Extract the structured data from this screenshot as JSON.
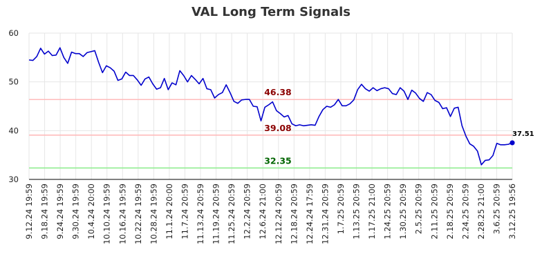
{
  "chart_data": {
    "type": "line",
    "title": "VAL Long Term Signals",
    "xlabel": "",
    "ylabel": "",
    "ylim": [
      30,
      60
    ],
    "yticks": [
      30,
      40,
      50,
      60
    ],
    "grid": true,
    "x_tick_labels": [
      "9.12.24 19:59",
      "9.18.24 19:59",
      "9.24.24 19:59",
      "9.30.24 19:59",
      "10.4.24 20:00",
      "10.10.24 19:59",
      "10.16.24 19:59",
      "10.22.24 19:59",
      "10.28.24 19:59",
      "11.1.24 20:00",
      "11.7.24 20:59",
      "11.13.24 20:59",
      "11.19.24 20:59",
      "11.25.24 20:59",
      "12.2.24 20:59",
      "12.6.24 21:00",
      "12.12.24 20:59",
      "12.18.24 20:59",
      "12.24.24 17:59",
      "12.31.24 20:59",
      "1.7.25 20:59",
      "1.13.25 20:59",
      "1.17.25 21:00",
      "1.24.25 20:59",
      "1.30.25 20:59",
      "2.5.25 20:59",
      "2.11.25 20:59",
      "2.18.25 20:59",
      "2.24.25 20:59",
      "2.28.25 21:00",
      "3.6.25 20:59",
      "3.12.25 19:56"
    ],
    "levels": [
      {
        "value": 46.38,
        "label": "46.38",
        "line_color": "#ffbbbb",
        "text_color": "#8b0000"
      },
      {
        "value": 39.08,
        "label": "39.08",
        "line_color": "#ffbbbb",
        "text_color": "#8b0000"
      },
      {
        "value": 32.35,
        "label": "32.35",
        "line_color": "#90ee90",
        "text_color": "#006400"
      }
    ],
    "last_value_label": "37.51",
    "line_color": "#0000cc",
    "series": [
      {
        "values": [
          54.5,
          54.4,
          55.2,
          56.9,
          55.7,
          56.3,
          55.4,
          55.5,
          57.0,
          55.0,
          53.8,
          56.1,
          55.8,
          55.8,
          55.2,
          56.0,
          56.2,
          56.4,
          54.0,
          51.9,
          53.3,
          52.9,
          52.2,
          50.3,
          50.6,
          52.0,
          51.3,
          51.3,
          50.4,
          49.3,
          50.6,
          51.0,
          49.6,
          48.5,
          48.8,
          50.7,
          48.4,
          49.8,
          49.4,
          52.3,
          51.3,
          50.0,
          51.3,
          50.5,
          49.6,
          50.7,
          48.6,
          48.4,
          46.7,
          47.4,
          47.8,
          49.4,
          47.8,
          46.0,
          45.6,
          46.3,
          46.4,
          46.4,
          45.0,
          44.9,
          42.0,
          44.8,
          45.3,
          45.9,
          44.1,
          43.5,
          42.8,
          43.1,
          41.4,
          41.0,
          41.2,
          41.0,
          41.1,
          41.2,
          41.1,
          42.9,
          44.3,
          45.0,
          44.8,
          45.3,
          46.4,
          45.1,
          45.1,
          45.5,
          46.3,
          48.4,
          49.5,
          48.6,
          48.1,
          48.8,
          48.2,
          48.6,
          48.8,
          48.6,
          47.6,
          47.4,
          48.8,
          48.1,
          46.4,
          48.3,
          47.7,
          46.6,
          46.0,
          47.8,
          47.4,
          46.2,
          45.8,
          44.5,
          44.7,
          42.9,
          44.6,
          44.8,
          41.0,
          38.9,
          37.3,
          36.8,
          35.8,
          33.0,
          33.9,
          34.0,
          34.9,
          37.4,
          37.1,
          37.1,
          37.2,
          37.51
        ]
      }
    ]
  }
}
